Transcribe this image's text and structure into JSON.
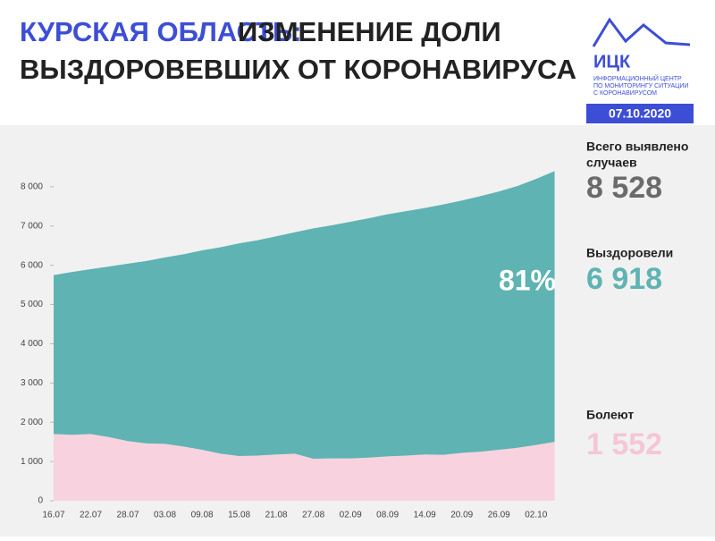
{
  "header": {
    "title_region": "КУРСКАЯ ОБЛАСТЬ:",
    "title_line1": "ИЗМЕНЕНИЕ ДОЛИ",
    "title_line2": "ВЫЗДОРОВЕВШИХ ОТ КОРОНАВИРУСА"
  },
  "logo": {
    "name": "ИЦК",
    "line1": "ИНФОРМАЦИОННЫЙ ЦЕНТР",
    "line2": "ПО МОНИТОРИНГУ СИТУАЦИИ",
    "line3": "С КОРОНАВИРУСОМ",
    "date": "07.10.2020"
  },
  "stats": [
    {
      "label_line1": "Всего выявлено",
      "label_line2": "случаев",
      "value": 8528,
      "value_label": "8 528",
      "color": "#6b6b6b"
    },
    {
      "label_line1": "Выздоровели",
      "value": 6918,
      "value_label": "6 918",
      "color": "#5fb3b3"
    },
    {
      "label_line1": "Болеют",
      "value": 1552,
      "value_label": "1 552",
      "color": "#f5c6d6"
    }
  ],
  "chart_data": {
    "type": "stacked_area",
    "categories": [
      "16.07",
      null,
      "22.07",
      null,
      "28.07",
      null,
      "03.08",
      null,
      "09.08",
      null,
      "15.08",
      null,
      "21.08",
      null,
      "27.08",
      null,
      "02.09",
      null,
      "08.09",
      null,
      "14.09",
      null,
      "20.09",
      null,
      "26.09",
      null,
      "02.10",
      null
    ],
    "series": [
      {
        "color": "#f8d3df",
        "values": [
          1700,
          1680,
          1700,
          1620,
          1520,
          1460,
          1450,
          1380,
          1300,
          1200,
          1140,
          1150,
          1180,
          1200,
          1070,
          1080,
          1080,
          1100,
          1130,
          1150,
          1180,
          1170,
          1220,
          1250,
          1300,
          1350,
          1420,
          1500
        ]
      },
      {
        "color": "#5fb3b3",
        "values": [
          4050,
          4150,
          4200,
          4350,
          4520,
          4650,
          4750,
          4900,
          5080,
          5260,
          5420,
          5490,
          5560,
          5640,
          5870,
          5940,
          6030,
          6100,
          6170,
          6230,
          6280,
          6380,
          6430,
          6510,
          6580,
          6670,
          6780,
          6900
        ]
      }
    ],
    "ylim": [
      0,
      9000
    ],
    "yticks": [
      0,
      {
        "value": 1000,
        "label": "1 000"
      },
      {
        "value": 2000,
        "label": "2 000"
      },
      {
        "value": 3000,
        "label": "3 000"
      },
      {
        "value": 4000,
        "label": "4 000"
      },
      {
        "value": 5000,
        "label": "5 000"
      },
      {
        "value": 6000,
        "label": "6 000"
      },
      {
        "value": 7000,
        "label": "7 000"
      },
      {
        "value": 8000,
        "label": "8 000"
      }
    ],
    "annotation": {
      "value": 81,
      "value_label": "81%"
    }
  }
}
